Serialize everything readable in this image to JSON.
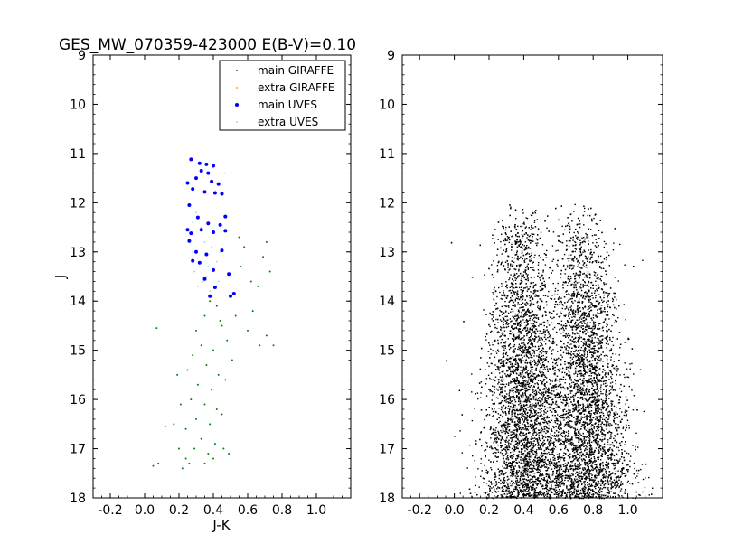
{
  "chart_data": [
    {
      "type": "scatter",
      "title": "GES_MW_070359-423000 E(B-V)=0.10",
      "xlabel": "J-K",
      "ylabel": "J",
      "xlim": [
        -0.3,
        1.2
      ],
      "ylim": [
        18,
        9
      ],
      "y_inverted": true,
      "xticks": [
        -0.2,
        0.0,
        0.2,
        0.4,
        0.6,
        0.8,
        1.0
      ],
      "xtick_labels": [
        "-0.2",
        "0.0",
        "0.2",
        "0.4",
        "0.6",
        "0.8",
        "1.0"
      ],
      "yticks": [
        9,
        10,
        11,
        12,
        13,
        14,
        15,
        16,
        17,
        18
      ],
      "ytick_labels": [
        "9",
        "10",
        "11",
        "12",
        "13",
        "14",
        "15",
        "16",
        "17",
        "18"
      ],
      "legend_position": "top-right",
      "series": [
        {
          "name": "main GIRAFFE",
          "color": "#008000",
          "marker": "dot",
          "points": [
            [
              0.38,
              14.0
            ],
            [
              0.35,
              14.3
            ],
            [
              0.42,
              14.1
            ],
            [
              0.3,
              14.6
            ],
            [
              0.45,
              14.5
            ],
            [
              0.33,
              14.9
            ],
            [
              0.28,
              15.1
            ],
            [
              0.4,
              15.0
            ],
            [
              0.48,
              14.8
            ],
            [
              0.36,
              15.3
            ],
            [
              0.25,
              15.4
            ],
            [
              0.43,
              15.5
            ],
            [
              0.31,
              15.7
            ],
            [
              0.39,
              15.8
            ],
            [
              0.47,
              15.6
            ],
            [
              0.27,
              16.0
            ],
            [
              0.35,
              16.1
            ],
            [
              0.42,
              16.2
            ],
            [
              0.3,
              16.4
            ],
            [
              0.38,
              16.5
            ],
            [
              0.45,
              16.3
            ],
            [
              0.24,
              16.6
            ],
            [
              0.33,
              16.8
            ],
            [
              0.41,
              16.9
            ],
            [
              0.29,
              17.0
            ],
            [
              0.37,
              17.1
            ],
            [
              0.46,
              17.0
            ],
            [
              0.26,
              17.3
            ],
            [
              0.35,
              17.3
            ],
            [
              0.22,
              17.4
            ],
            [
              0.4,
              17.2
            ],
            [
              0.49,
              17.1
            ],
            [
              0.08,
              17.3
            ],
            [
              0.05,
              17.35
            ],
            [
              0.12,
              16.55
            ],
            [
              0.07,
              14.55
            ],
            [
              0.55,
              12.7
            ],
            [
              0.58,
              12.9
            ],
            [
              0.56,
              13.3
            ],
            [
              0.62,
              13.6
            ],
            [
              0.69,
              13.1
            ],
            [
              0.71,
              12.8
            ],
            [
              0.73,
              13.4
            ],
            [
              0.66,
              13.7
            ],
            [
              0.63,
              14.2
            ],
            [
              0.6,
              14.6
            ],
            [
              0.67,
              14.9
            ],
            [
              0.71,
              14.7
            ],
            [
              0.75,
              14.9
            ],
            [
              0.53,
              14.3
            ],
            [
              0.51,
              15.2
            ],
            [
              0.44,
              14.4
            ],
            [
              0.19,
              15.5
            ],
            [
              0.21,
              16.1
            ],
            [
              0.17,
              16.5
            ],
            [
              0.2,
              17.0
            ],
            [
              0.24,
              17.2
            ]
          ]
        },
        {
          "name": "extra GIRAFFE",
          "color": "#ffa500",
          "marker": "dot",
          "points": []
        },
        {
          "name": "main UVES",
          "color": "#0000ff",
          "marker": "dot",
          "points": [
            [
              0.27,
              11.12
            ],
            [
              0.32,
              11.2
            ],
            [
              0.36,
              11.22
            ],
            [
              0.4,
              11.25
            ],
            [
              0.33,
              11.35
            ],
            [
              0.37,
              11.4
            ],
            [
              0.3,
              11.5
            ],
            [
              0.25,
              11.6
            ],
            [
              0.39,
              11.57
            ],
            [
              0.43,
              11.62
            ],
            [
              0.28,
              11.72
            ],
            [
              0.35,
              11.78
            ],
            [
              0.41,
              11.8
            ],
            [
              0.45,
              11.82
            ],
            [
              0.26,
              12.05
            ],
            [
              0.31,
              12.3
            ],
            [
              0.37,
              12.42
            ],
            [
              0.47,
              12.28
            ],
            [
              0.44,
              12.45
            ],
            [
              0.25,
              12.55
            ],
            [
              0.27,
              12.62
            ],
            [
              0.33,
              12.55
            ],
            [
              0.4,
              12.6
            ],
            [
              0.47,
              12.57
            ],
            [
              0.26,
              12.78
            ],
            [
              0.3,
              13.0
            ],
            [
              0.36,
              13.05
            ],
            [
              0.45,
              12.97
            ],
            [
              0.32,
              13.22
            ],
            [
              0.28,
              13.18
            ],
            [
              0.4,
              13.37
            ],
            [
              0.49,
              13.45
            ],
            [
              0.35,
              13.55
            ],
            [
              0.41,
              13.72
            ],
            [
              0.52,
              13.85
            ],
            [
              0.38,
              13.9
            ],
            [
              0.5,
              13.9
            ]
          ]
        },
        {
          "name": "extra UVES",
          "color": "#add8e6",
          "marker": "dot",
          "points": [
            [
              0.3,
              12.2
            ],
            [
              0.33,
              12.5
            ],
            [
              0.35,
              12.8
            ],
            [
              0.28,
              13.0
            ],
            [
              0.32,
              13.3
            ],
            [
              0.36,
              13.5
            ],
            [
              0.38,
              13.8
            ],
            [
              0.34,
              13.6
            ],
            [
              0.29,
              13.4
            ],
            [
              0.42,
              13.2
            ],
            [
              0.44,
              13.0
            ],
            [
              0.39,
              12.9
            ],
            [
              0.31,
              13.7
            ],
            [
              0.37,
              13.3
            ],
            [
              0.43,
              13.6
            ],
            [
              0.47,
              11.4
            ],
            [
              0.5,
              11.4
            ],
            [
              0.28,
              12.4
            ]
          ]
        }
      ]
    },
    {
      "type": "scatter",
      "title": "",
      "xlabel": "",
      "ylabel": "",
      "xlim": [
        -0.3,
        1.2
      ],
      "ylim": [
        18,
        9
      ],
      "y_inverted": true,
      "xticks": [
        -0.2,
        0.0,
        0.2,
        0.4,
        0.6,
        0.8,
        1.0
      ],
      "xtick_labels": [
        "-0.2",
        "0.0",
        "0.2",
        "0.4",
        "0.6",
        "0.8",
        "1.0"
      ],
      "yticks": [
        9,
        10,
        11,
        12,
        13,
        14,
        15,
        16,
        17,
        18
      ],
      "ytick_labels": [
        "9",
        "10",
        "11",
        "12",
        "13",
        "14",
        "15",
        "16",
        "17",
        "18"
      ],
      "series": [
        {
          "color": "#000000",
          "marker": "dot",
          "sampled": true,
          "description_shape": "dense two-branch colour-magnitude distribution, J from 12.0 to 18.0, J-K mostly 0.3 to 0.9, broadening toward faint magnitudes",
          "points": [
            [
              0.32,
              12.1
            ],
            [
              0.45,
              12.2
            ],
            [
              0.58,
              12.1
            ],
            [
              0.71,
              12.3
            ],
            [
              0.28,
              12.5
            ],
            [
              0.41,
              12.6
            ],
            [
              0.62,
              12.8
            ],
            [
              0.8,
              13.0
            ],
            [
              0.25,
              13.2
            ],
            [
              0.36,
              13.5
            ],
            [
              0.52,
              13.7
            ],
            [
              0.74,
              13.9
            ],
            [
              0.88,
              14.1
            ],
            [
              0.3,
              14.3
            ],
            [
              0.46,
              14.6
            ],
            [
              0.68,
              14.8
            ],
            [
              0.82,
              15.0
            ],
            [
              0.27,
              15.3
            ],
            [
              0.4,
              15.6
            ],
            [
              0.6,
              15.9
            ],
            [
              0.78,
              16.1
            ],
            [
              0.92,
              16.3
            ],
            [
              0.22,
              16.6
            ],
            [
              0.35,
              16.9
            ],
            [
              0.55,
              17.2
            ],
            [
              0.75,
              17.4
            ],
            [
              0.9,
              17.6
            ],
            [
              0.2,
              17.8
            ],
            [
              0.48,
              17.9
            ],
            [
              0.7,
              17.9
            ],
            [
              -0.02,
              12.8
            ],
            [
              0.1,
              13.5
            ],
            [
              0.05,
              14.4
            ],
            [
              -0.05,
              15.2
            ],
            [
              1.05,
              16.2
            ],
            [
              1.1,
              17.3
            ]
          ]
        }
      ]
    }
  ]
}
